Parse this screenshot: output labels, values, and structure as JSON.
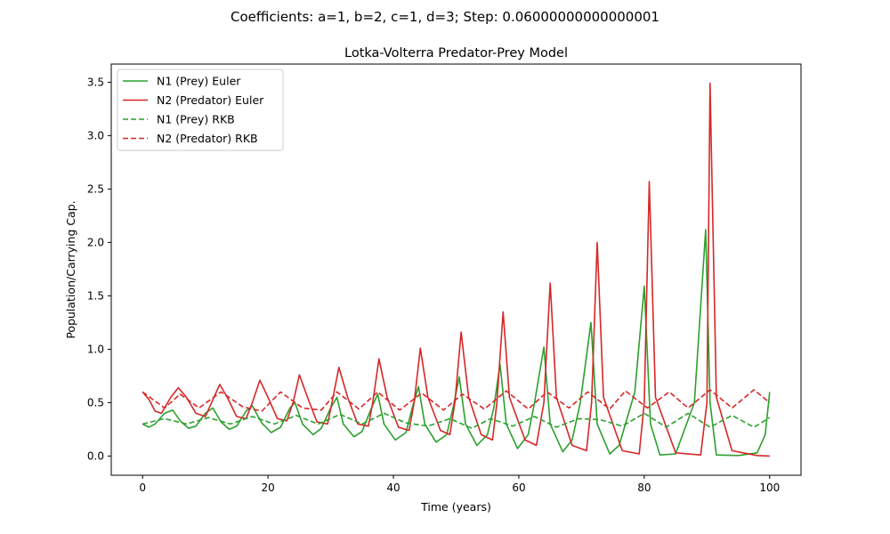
{
  "chart_data": {
    "type": "line",
    "suptitle": "Coefficients: a=1, b=2, c=1, d=3; Step: 0.06000000000000001",
    "title": "Lotka-Volterra Predator-Prey Model",
    "xlabel": "Time (years)",
    "ylabel": "Population/Carrying Cap.",
    "xlim": [
      -5,
      105
    ],
    "ylim": [
      -0.18,
      3.67
    ],
    "xticks": [
      0,
      20,
      40,
      60,
      80,
      100
    ],
    "xtick_labels": [
      "0",
      "20",
      "40",
      "60",
      "80",
      "100"
    ],
    "yticks": [
      0.0,
      0.5,
      1.0,
      1.5,
      2.0,
      2.5,
      3.0,
      3.5
    ],
    "ytick_labels": [
      "0.0",
      "0.5",
      "1.0",
      "1.5",
      "2.0",
      "2.5",
      "3.0",
      "3.5"
    ],
    "grid": false,
    "legend_position": "upper-left",
    "series": [
      {
        "name": "N1 (Prey) Euler",
        "color": "#2ca02c",
        "style": "solid",
        "points": [
          [
            0,
            0.3
          ],
          [
            1,
            0.27
          ],
          [
            2,
            0.3
          ],
          [
            3.5,
            0.4
          ],
          [
            4.8,
            0.43
          ],
          [
            6,
            0.33
          ],
          [
            7.3,
            0.26
          ],
          [
            8.5,
            0.28
          ],
          [
            10,
            0.4
          ],
          [
            11.2,
            0.45
          ],
          [
            12.5,
            0.32
          ],
          [
            13.8,
            0.25
          ],
          [
            15,
            0.28
          ],
          [
            16.5,
            0.42
          ],
          [
            17.5,
            0.47
          ],
          [
            19,
            0.31
          ],
          [
            20.5,
            0.22
          ],
          [
            22,
            0.27
          ],
          [
            23.5,
            0.45
          ],
          [
            24.3,
            0.5
          ],
          [
            25.5,
            0.3
          ],
          [
            27.2,
            0.2
          ],
          [
            28.5,
            0.26
          ],
          [
            30,
            0.45
          ],
          [
            31,
            0.55
          ],
          [
            32,
            0.3
          ],
          [
            33.7,
            0.18
          ],
          [
            35,
            0.23
          ],
          [
            36.5,
            0.45
          ],
          [
            37.5,
            0.58
          ],
          [
            38.5,
            0.3
          ],
          [
            40.3,
            0.15
          ],
          [
            42,
            0.22
          ],
          [
            43,
            0.45
          ],
          [
            44,
            0.65
          ],
          [
            45,
            0.3
          ],
          [
            46.8,
            0.13
          ],
          [
            48.5,
            0.2
          ],
          [
            49.5,
            0.45
          ],
          [
            50.5,
            0.74
          ],
          [
            51.5,
            0.3
          ],
          [
            53.3,
            0.1
          ],
          [
            55,
            0.2
          ],
          [
            56,
            0.45
          ],
          [
            57,
            0.86
          ],
          [
            58,
            0.3
          ],
          [
            59.8,
            0.07
          ],
          [
            61.5,
            0.2
          ],
          [
            62.5,
            0.5
          ],
          [
            64,
            1.02
          ],
          [
            65,
            0.3
          ],
          [
            67,
            0.04
          ],
          [
            68.5,
            0.15
          ],
          [
            69.8,
            0.5
          ],
          [
            71.5,
            1.25
          ],
          [
            72.5,
            0.3
          ],
          [
            74.5,
            0.02
          ],
          [
            76,
            0.1
          ],
          [
            78.5,
            0.6
          ],
          [
            80,
            1.59
          ],
          [
            81,
            0.3
          ],
          [
            82.5,
            0.01
          ],
          [
            85,
            0.02
          ],
          [
            88,
            0.5
          ],
          [
            89.8,
            2.12
          ],
          [
            90.5,
            0.5
          ],
          [
            91.5,
            0.01
          ],
          [
            95,
            0.005
          ],
          [
            98,
            0.03
          ],
          [
            99.3,
            0.2
          ],
          [
            100,
            0.6
          ]
        ]
      },
      {
        "name": "N2 (Predator) Euler",
        "color": "#d62728",
        "style": "solid",
        "points": [
          [
            0,
            0.6
          ],
          [
            1,
            0.53
          ],
          [
            2,
            0.42
          ],
          [
            3,
            0.4
          ],
          [
            4.5,
            0.55
          ],
          [
            5.7,
            0.64
          ],
          [
            7,
            0.55
          ],
          [
            8.5,
            0.4
          ],
          [
            10,
            0.37
          ],
          [
            11,
            0.5
          ],
          [
            12.3,
            0.67
          ],
          [
            13.5,
            0.55
          ],
          [
            15,
            0.37
          ],
          [
            16.5,
            0.35
          ],
          [
            17.5,
            0.5
          ],
          [
            18.7,
            0.71
          ],
          [
            20,
            0.55
          ],
          [
            21.5,
            0.35
          ],
          [
            23,
            0.33
          ],
          [
            24,
            0.5
          ],
          [
            25,
            0.76
          ],
          [
            26.3,
            0.55
          ],
          [
            27.8,
            0.32
          ],
          [
            29.5,
            0.3
          ],
          [
            30.2,
            0.5
          ],
          [
            31.3,
            0.83
          ],
          [
            32.7,
            0.55
          ],
          [
            34.3,
            0.3
          ],
          [
            36,
            0.28
          ],
          [
            36.7,
            0.5
          ],
          [
            37.7,
            0.91
          ],
          [
            39,
            0.55
          ],
          [
            40.8,
            0.27
          ],
          [
            42.5,
            0.24
          ],
          [
            43.3,
            0.5
          ],
          [
            44.3,
            1.01
          ],
          [
            45.5,
            0.55
          ],
          [
            47.5,
            0.24
          ],
          [
            49,
            0.2
          ],
          [
            49.8,
            0.5
          ],
          [
            50.8,
            1.16
          ],
          [
            52,
            0.55
          ],
          [
            54,
            0.2
          ],
          [
            55.8,
            0.15
          ],
          [
            56.5,
            0.5
          ],
          [
            57.5,
            1.35
          ],
          [
            58.5,
            0.55
          ],
          [
            61,
            0.15
          ],
          [
            62.8,
            0.1
          ],
          [
            64,
            0.5
          ],
          [
            65,
            1.62
          ],
          [
            66,
            0.55
          ],
          [
            68.5,
            0.1
          ],
          [
            70.8,
            0.05
          ],
          [
            71.6,
            0.5
          ],
          [
            72.5,
            2.0
          ],
          [
            73.5,
            0.55
          ],
          [
            76.5,
            0.05
          ],
          [
            79.2,
            0.02
          ],
          [
            80,
            0.5
          ],
          [
            80.8,
            2.57
          ],
          [
            81.8,
            0.55
          ],
          [
            85,
            0.03
          ],
          [
            89,
            0.01
          ],
          [
            90,
            0.5
          ],
          [
            90.5,
            3.49
          ],
          [
            91.5,
            0.55
          ],
          [
            94,
            0.05
          ],
          [
            98,
            0.005
          ],
          [
            100,
            0.0
          ]
        ]
      },
      {
        "name": "N1 (Prey) RKB",
        "color": "#2ca02c",
        "style": "dashed",
        "points": [
          [
            0,
            0.3
          ],
          [
            3.5,
            0.35
          ],
          [
            7,
            0.3
          ],
          [
            10.5,
            0.36
          ],
          [
            14,
            0.3
          ],
          [
            17.5,
            0.37
          ],
          [
            21,
            0.3
          ],
          [
            24.5,
            0.38
          ],
          [
            28,
            0.3
          ],
          [
            31.5,
            0.39
          ],
          [
            35,
            0.3
          ],
          [
            38.5,
            0.4
          ],
          [
            42,
            0.31
          ],
          [
            45.5,
            0.28
          ],
          [
            49,
            0.35
          ],
          [
            52.5,
            0.26
          ],
          [
            55.5,
            0.35
          ],
          [
            59,
            0.28
          ],
          [
            62.5,
            0.37
          ],
          [
            66,
            0.27
          ],
          [
            69.5,
            0.35
          ],
          [
            73,
            0.34
          ],
          [
            76.5,
            0.28
          ],
          [
            80,
            0.4
          ],
          [
            83.5,
            0.27
          ],
          [
            87,
            0.4
          ],
          [
            90.5,
            0.27
          ],
          [
            94,
            0.38
          ],
          [
            97.5,
            0.27
          ],
          [
            100,
            0.36
          ]
        ]
      },
      {
        "name": "N2 (Predator) RKB",
        "color": "#d62728",
        "style": "dashed",
        "points": [
          [
            0,
            0.6
          ],
          [
            3.5,
            0.45
          ],
          [
            6,
            0.58
          ],
          [
            9,
            0.45
          ],
          [
            12.5,
            0.6
          ],
          [
            16,
            0.46
          ],
          [
            19,
            0.42
          ],
          [
            22,
            0.6
          ],
          [
            25.5,
            0.45
          ],
          [
            28.5,
            0.43
          ],
          [
            31,
            0.6
          ],
          [
            34.5,
            0.44
          ],
          [
            37.5,
            0.6
          ],
          [
            41,
            0.43
          ],
          [
            44.5,
            0.59
          ],
          [
            48,
            0.43
          ],
          [
            51,
            0.58
          ],
          [
            54.5,
            0.44
          ],
          [
            58,
            0.61
          ],
          [
            61.5,
            0.44
          ],
          [
            64.5,
            0.6
          ],
          [
            68,
            0.45
          ],
          [
            71,
            0.6
          ],
          [
            74.5,
            0.44
          ],
          [
            77,
            0.61
          ],
          [
            80.5,
            0.45
          ],
          [
            84,
            0.6
          ],
          [
            87,
            0.45
          ],
          [
            90.5,
            0.62
          ],
          [
            94,
            0.45
          ],
          [
            97.5,
            0.62
          ],
          [
            100,
            0.5
          ]
        ]
      }
    ]
  }
}
